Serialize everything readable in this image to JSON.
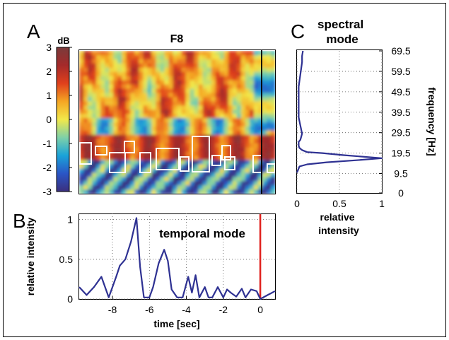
{
  "chart_data": [
    {
      "panel": "A",
      "type": "heatmap",
      "title": "F8",
      "colorbar": {
        "label": "dB",
        "range": [
          -3,
          3
        ],
        "ticks": [
          "3",
          "2",
          "1",
          "0",
          "-1",
          "-2",
          "-3"
        ],
        "colors": [
          "#3b2f7d",
          "#2a56c6",
          "#1aa3d9",
          "#7fd1a8",
          "#f2e84a",
          "#f5a623",
          "#e0401c",
          "#a52a2a",
          "#7a3b3b"
        ]
      },
      "ylim": [
        -3,
        3
      ],
      "marker_line": "black",
      "significance_outline": "white"
    },
    {
      "panel": "B",
      "type": "line",
      "title": "temporal mode",
      "xlabel": "time [sec]",
      "ylabel": "relative intensity",
      "xlim": [
        -9.8,
        0.8
      ],
      "ylim": [
        0,
        1.05
      ],
      "xticks": [
        "-8",
        "-6",
        "-4",
        "-2",
        "0"
      ],
      "yticks": [
        "0",
        "0.5",
        "1"
      ],
      "xtick_values": [
        -8,
        -6,
        -4,
        -2,
        0
      ],
      "ytick_values": [
        0,
        0.5,
        1
      ],
      "grid": true,
      "line_color": "#2e3192",
      "event_line": {
        "x": 0,
        "color": "#e0201c"
      },
      "x": [
        -9.8,
        -9.4,
        -9.0,
        -8.6,
        -8.2,
        -7.8,
        -7.6,
        -7.3,
        -7.0,
        -6.7,
        -6.5,
        -6.3,
        -6.0,
        -5.8,
        -5.5,
        -5.2,
        -5.0,
        -4.8,
        -4.5,
        -4.2,
        -3.9,
        -3.7,
        -3.5,
        -3.3,
        -3.0,
        -2.8,
        -2.6,
        -2.3,
        -2.0,
        -1.8,
        -1.6,
        -1.3,
        -1.0,
        -0.8,
        -0.5,
        -0.2,
        0.0,
        0.4,
        0.8
      ],
      "y": [
        0.15,
        0.05,
        0.15,
        0.28,
        0.02,
        0.28,
        0.42,
        0.5,
        0.72,
        1.02,
        0.4,
        0.02,
        0.02,
        0.15,
        0.45,
        0.62,
        0.48,
        0.12,
        0.02,
        0.02,
        0.28,
        0.08,
        0.3,
        0.02,
        0.15,
        0.02,
        0.02,
        0.15,
        0.02,
        0.12,
        0.08,
        0.03,
        0.13,
        0.02,
        0.12,
        0.1,
        0.0,
        0.05,
        0.1
      ]
    },
    {
      "panel": "C",
      "type": "line",
      "title": "spectral mode",
      "xlabel": "relative intensity",
      "ylabel": "frequency [Hz]",
      "xlim": [
        0,
        1
      ],
      "ylim": [
        0,
        69.5
      ],
      "xticks": [
        "0",
        "0.5",
        "1"
      ],
      "yticks": [
        "0",
        "9.5",
        "19.5",
        "29.5",
        "39.5",
        "49.5",
        "59.5",
        "69.5"
      ],
      "xtick_values": [
        0,
        0.5,
        1
      ],
      "ytick_values": [
        0,
        9.5,
        19.5,
        29.5,
        39.5,
        49.5,
        59.5,
        69.5
      ],
      "grid": true,
      "line_color": "#2e3192",
      "x": [
        0.07,
        0.06,
        0.06,
        0.05,
        0.04,
        0.03,
        0.02,
        0.02,
        0.02,
        0.02,
        0.02,
        0.02,
        0.03,
        0.04,
        0.05,
        0.06,
        0.05,
        0.04,
        0.02,
        0.02,
        0.02,
        0.03,
        0.06,
        0.12,
        0.3,
        0.55,
        1.0,
        0.7,
        0.35,
        0.12,
        0.03,
        0.02,
        0.01,
        0.0
      ],
      "y": [
        69.5,
        67,
        64,
        61,
        58,
        55,
        52,
        49,
        46,
        43,
        40,
        37,
        35,
        33,
        31,
        29,
        27.5,
        26,
        25,
        24,
        23,
        22,
        21,
        20,
        19.5,
        18.5,
        17,
        16,
        15,
        14,
        13,
        12,
        11,
        10
      ]
    }
  ],
  "panel_labels": [
    "A",
    "B",
    "C"
  ]
}
